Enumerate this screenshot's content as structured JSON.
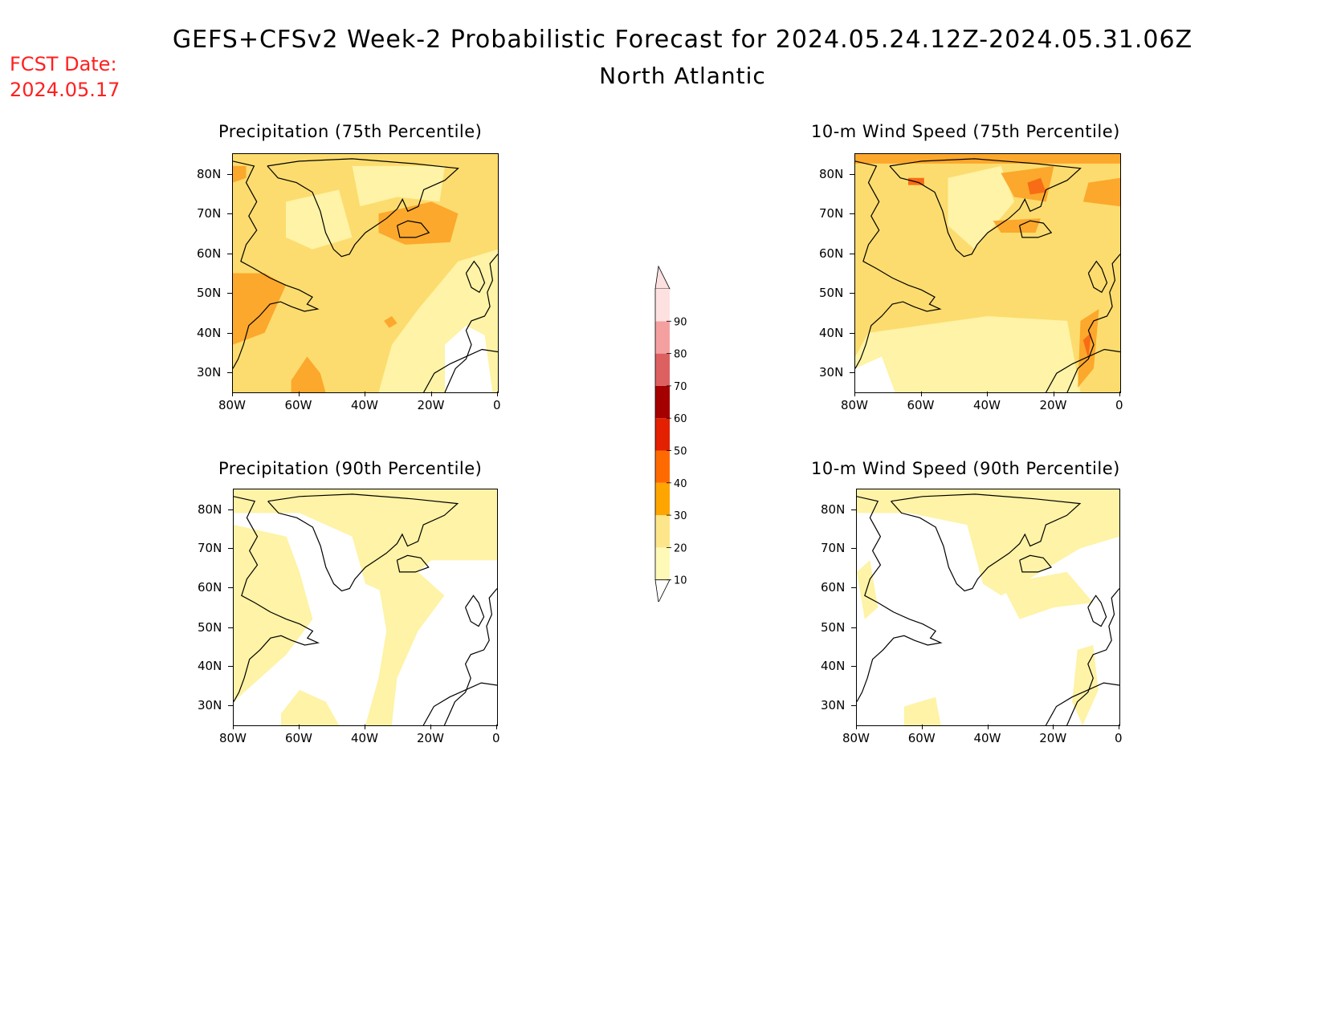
{
  "header": {
    "title": "GEFS+CFSv2 Week-2 Probabilistic Forecast for 2024.05.24.12Z-2024.05.31.06Z",
    "subtitle": "North Atlantic",
    "fcst_label": "FCST Date:",
    "fcst_date": "2024.05.17"
  },
  "panels": [
    {
      "title": "Precipitation (75th Percentile)"
    },
    {
      "title": "10-m Wind Speed (75th Percentile)"
    },
    {
      "title": "Precipitation (90th Percentile)"
    },
    {
      "title": "10-m Wind Speed (90th Percentile)"
    }
  ],
  "axes": {
    "lat_labels": [
      "80N",
      "70N",
      "60N",
      "50N",
      "40N",
      "30N"
    ],
    "lon_labels": [
      "80W",
      "60W",
      "40W",
      "20W",
      "0"
    ]
  },
  "colorbar": {
    "levels": [
      "10",
      "20",
      "30",
      "40",
      "50",
      "60",
      "70",
      "80",
      "90"
    ],
    "colors": [
      "#fff9b8",
      "#fde68a",
      "#ffa500",
      "#ff6a00",
      "#e32000",
      "#a50000",
      "#dd6060",
      "#f5a0a0",
      "#fde0e0"
    ]
  },
  "map_colors": {
    "level1": "#fef3a6",
    "level2": "#fcdc6e",
    "level3": "#fca82c",
    "level4": "#f86c16",
    "coast": "#000000"
  }
}
